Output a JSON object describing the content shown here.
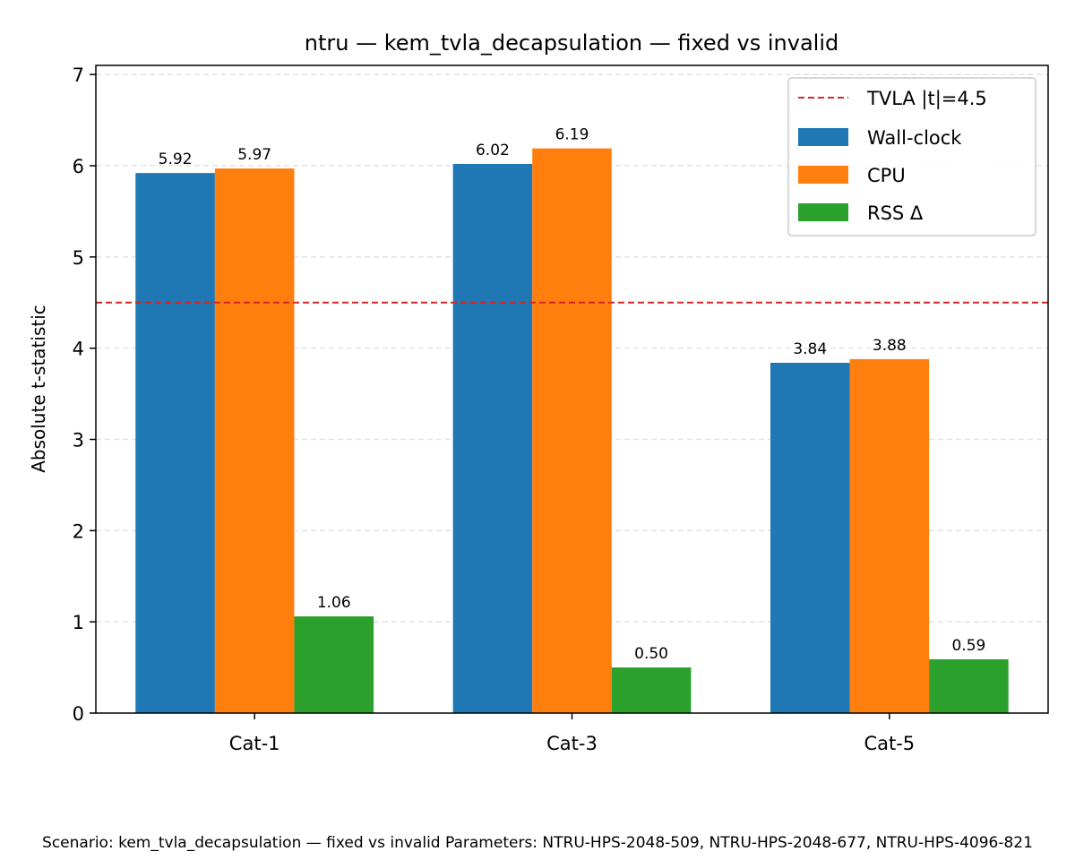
{
  "chart_data": {
    "type": "bar",
    "title": "ntru — kem_tvla_decapsulation — fixed vs invalid",
    "xlabel": "",
    "ylabel": "Absolute t-statistic",
    "categories": [
      "Cat-1",
      "Cat-3",
      "Cat-5"
    ],
    "series": [
      {
        "name": "Wall-clock",
        "color": "#1f77b4",
        "values": [
          5.92,
          6.02,
          3.84
        ],
        "labels": [
          "5.92",
          "6.02",
          "3.84"
        ]
      },
      {
        "name": "CPU",
        "color": "#ff7f0e",
        "values": [
          5.97,
          6.19,
          3.88
        ],
        "labels": [
          "5.97",
          "6.19",
          "3.88"
        ]
      },
      {
        "name": "RSS Δ",
        "color": "#2ca02c",
        "values": [
          1.06,
          0.5,
          0.59
        ],
        "labels": [
          "1.06",
          "0.50",
          "0.59"
        ]
      }
    ],
    "threshold": {
      "label": "TVLA |t|=4.5",
      "value": 4.5,
      "color": "#d62728",
      "style": "dashed"
    },
    "ylim": [
      0,
      7.1
    ],
    "yticks": [
      0,
      1,
      2,
      3,
      4,
      5,
      6,
      7
    ],
    "grid": "y-dashed",
    "legend": "top-right",
    "footer": "Scenario: kem_tvla_decapsulation — fixed vs invalid Parameters: NTRU-HPS-2048-509, NTRU-HPS-2048-677, NTRU-HPS-4096-821"
  }
}
